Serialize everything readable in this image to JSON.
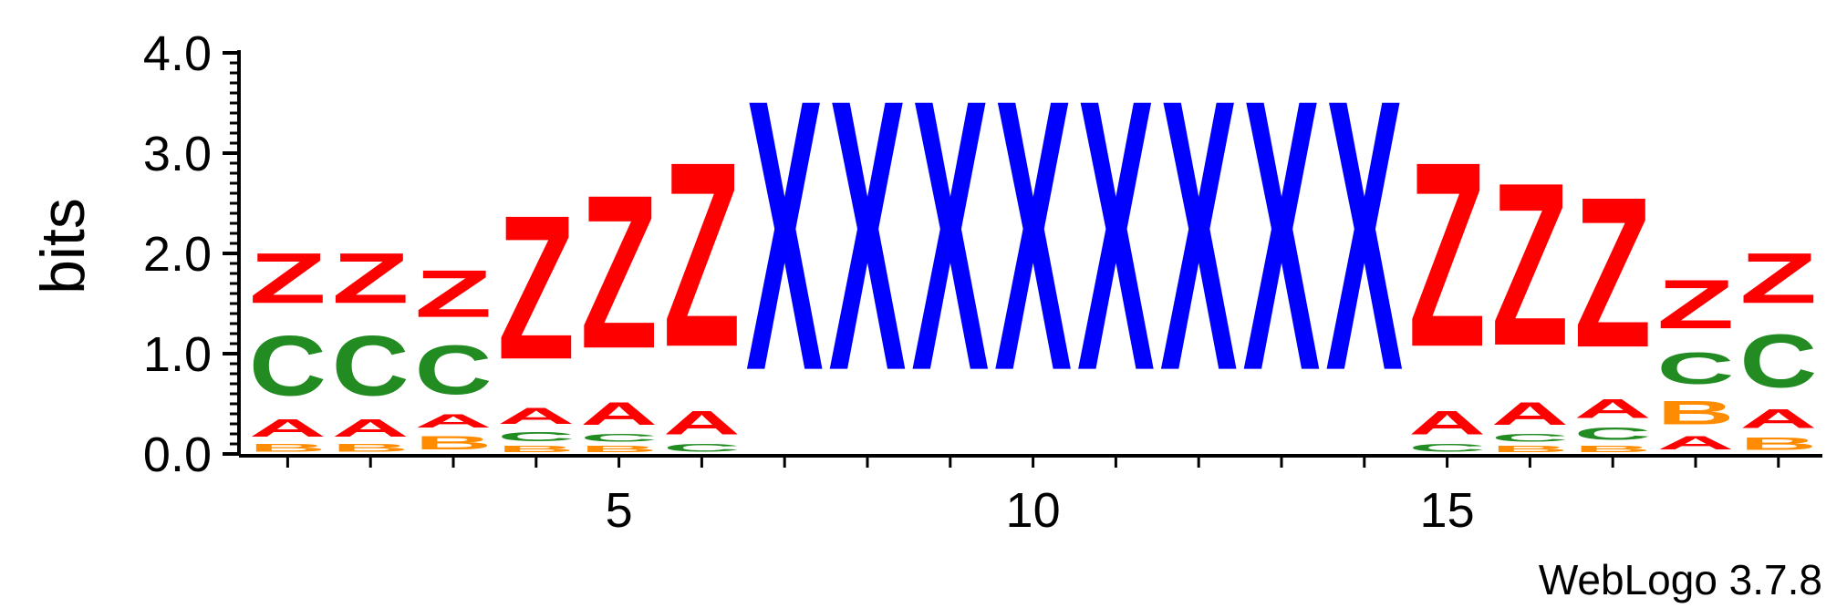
{
  "chart_data": {
    "type": "sequence-logo",
    "ylabel": "bits",
    "ylim": [
      0,
      4.0
    ],
    "y_ticks": [
      "0.0",
      "1.0",
      "2.0",
      "3.0",
      "4.0"
    ],
    "x_tick_labels": [
      {
        "position": 5,
        "label": "5"
      },
      {
        "position": 10,
        "label": "10"
      },
      {
        "position": 15,
        "label": "15"
      }
    ],
    "credit": "WebLogo 3.7.8",
    "colors": {
      "Z": "#ff0000",
      "A": "#ff0000",
      "C": "#228b22",
      "B": "#ff8c00",
      "X": "#0000ff"
    },
    "positions": [
      {
        "pos": 1,
        "stack": [
          {
            "letter": "B",
            "bits": 0.12
          },
          {
            "letter": "A",
            "bits": 0.28
          },
          {
            "letter": "C",
            "bits": 0.95
          },
          {
            "letter": "Z",
            "bits": 0.8
          }
        ]
      },
      {
        "pos": 2,
        "stack": [
          {
            "letter": "B",
            "bits": 0.12
          },
          {
            "letter": "A",
            "bits": 0.28
          },
          {
            "letter": "C",
            "bits": 0.95
          },
          {
            "letter": "Z",
            "bits": 0.8
          }
        ]
      },
      {
        "pos": 3,
        "stack": [
          {
            "letter": "B",
            "bits": 0.22
          },
          {
            "letter": "A",
            "bits": 0.22
          },
          {
            "letter": "C",
            "bits": 0.78
          },
          {
            "letter": "Z",
            "bits": 0.75
          }
        ]
      },
      {
        "pos": 4,
        "stack": [
          {
            "letter": "B",
            "bits": 0.1
          },
          {
            "letter": "C",
            "bits": 0.15
          },
          {
            "letter": "A",
            "bits": 0.25
          },
          {
            "letter": "Z",
            "bits": 2.3
          }
        ]
      },
      {
        "pos": 5,
        "stack": [
          {
            "letter": "B",
            "bits": 0.1
          },
          {
            "letter": "C",
            "bits": 0.12
          },
          {
            "letter": "A",
            "bits": 0.36
          },
          {
            "letter": "Z",
            "bits": 2.45
          }
        ]
      },
      {
        "pos": 6,
        "stack": [
          {
            "letter": "C",
            "bits": 0.12
          },
          {
            "letter": "A",
            "bits": 0.38
          },
          {
            "letter": "Z",
            "bits": 2.95
          }
        ]
      },
      {
        "pos": 7,
        "stack": [
          {
            "letter": "X",
            "bits": 4.32
          }
        ]
      },
      {
        "pos": 8,
        "stack": [
          {
            "letter": "X",
            "bits": 4.32
          }
        ]
      },
      {
        "pos": 9,
        "stack": [
          {
            "letter": "X",
            "bits": 4.32
          }
        ]
      },
      {
        "pos": 10,
        "stack": [
          {
            "letter": "X",
            "bits": 4.32
          }
        ]
      },
      {
        "pos": 11,
        "stack": [
          {
            "letter": "X",
            "bits": 4.32
          }
        ]
      },
      {
        "pos": 12,
        "stack": [
          {
            "letter": "X",
            "bits": 4.32
          }
        ]
      },
      {
        "pos": 13,
        "stack": [
          {
            "letter": "X",
            "bits": 4.32
          }
        ]
      },
      {
        "pos": 14,
        "stack": [
          {
            "letter": "X",
            "bits": 4.32
          }
        ]
      },
      {
        "pos": 15,
        "stack": [
          {
            "letter": "C",
            "bits": 0.12
          },
          {
            "letter": "A",
            "bits": 0.38
          },
          {
            "letter": "Z",
            "bits": 2.95
          }
        ]
      },
      {
        "pos": 16,
        "stack": [
          {
            "letter": "B",
            "bits": 0.1
          },
          {
            "letter": "C",
            "bits": 0.12
          },
          {
            "letter": "A",
            "bits": 0.36
          },
          {
            "letter": "Z",
            "bits": 2.6
          }
        ]
      },
      {
        "pos": 17,
        "stack": [
          {
            "letter": "B",
            "bits": 0.1
          },
          {
            "letter": "C",
            "bits": 0.2
          },
          {
            "letter": "A",
            "bits": 0.3
          },
          {
            "letter": "Z",
            "bits": 2.4
          }
        ]
      },
      {
        "pos": 18,
        "stack": [
          {
            "letter": "A",
            "bits": 0.22
          },
          {
            "letter": "B",
            "bits": 0.38
          },
          {
            "letter": "C",
            "bits": 0.5
          },
          {
            "letter": "Z",
            "bits": 0.78
          }
        ]
      },
      {
        "pos": 19,
        "stack": [
          {
            "letter": "B",
            "bits": 0.2
          },
          {
            "letter": "A",
            "bits": 0.3
          },
          {
            "letter": "C",
            "bits": 0.85
          },
          {
            "letter": "Z",
            "bits": 0.8
          }
        ]
      }
    ]
  }
}
